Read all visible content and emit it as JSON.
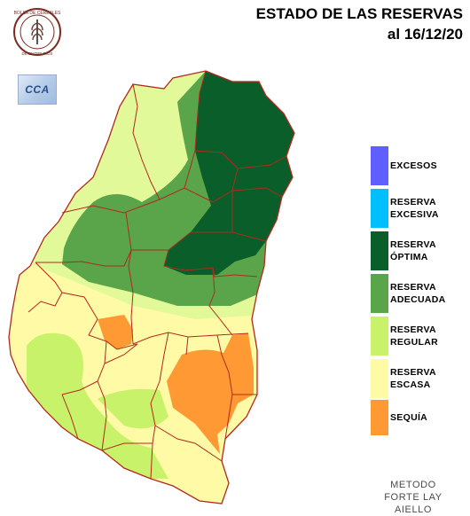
{
  "title": {
    "line1": "ESTADO DE LAS RESERVAS",
    "line2": "al 16/12/20"
  },
  "logos": {
    "seal_icon": "bolsa-de-cereales-seal",
    "seal_text_top": "BOLSA DE CEREALES",
    "seal_text_bottom": "DE ENTRE RIOS",
    "cca_icon": "cca-logo",
    "cca_text": "CCA"
  },
  "legend": {
    "items": [
      {
        "label": "EXCESOS",
        "color": "#5f5fff"
      },
      {
        "label": "RESERVA\nEXCESIVA",
        "color": "#00bfff"
      },
      {
        "label": "RESERVA\nÓPTIMA",
        "color": "#0a5e2a"
      },
      {
        "label": "RESERVA\nADECUADA",
        "color": "#5aa44a"
      },
      {
        "label": "RESERVA\nREGULAR",
        "color": "#c8f26a"
      },
      {
        "label": "RESERVA\nESCASA",
        "color": "#fffaa6"
      },
      {
        "label": "SEQUÍA",
        "color": "#ff9933"
      }
    ]
  },
  "method": {
    "line1": "METODO",
    "line2": "FORTE LAY",
    "line3": "AIELLO"
  },
  "colors": {
    "border": "#b02a1e",
    "optima": "#0a5e2a",
    "adecuada": "#5aa44a",
    "regular": "#c8f26a",
    "escasa": "#fffaa6",
    "sequia": "#ff9933"
  }
}
